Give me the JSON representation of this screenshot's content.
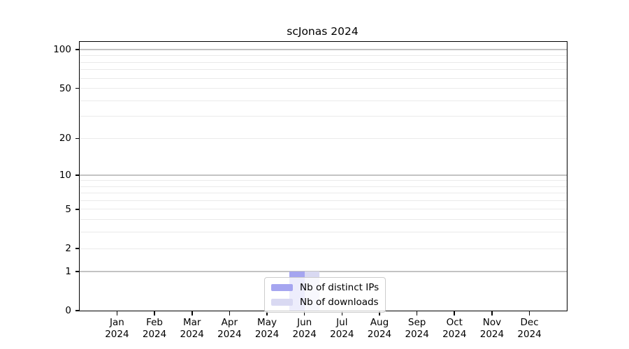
{
  "title": "scJonas 2024",
  "colors": {
    "ips_bar": "#a5a5f0",
    "downloads_bar": "#d9d9f2",
    "grid_emphasized": "#c3c3c3",
    "grid_light": "#eaeaea",
    "axis": "#000000",
    "background": "#ffffff"
  },
  "chart_data": {
    "type": "bar",
    "title": "scJonas 2024",
    "scale": "log1p",
    "grid": true,
    "categories": [
      "Jan\n2024",
      "Feb\n2024",
      "Mar\n2024",
      "Apr\n2024",
      "May\n2024",
      "Jun\n2024",
      "Jul\n2024",
      "Aug\n2024",
      "Sep\n2024",
      "Oct\n2024",
      "Nov\n2024",
      "Dec\n2024"
    ],
    "series": [
      {
        "name": "Nb of distinct IPs",
        "color": "#a5a5f0",
        "values": [
          0,
          0,
          0,
          0,
          0,
          1,
          0,
          0,
          0,
          0,
          0,
          0
        ]
      },
      {
        "name": "Nb of downloads",
        "color": "#d9d9f2",
        "values": [
          0,
          0,
          0,
          0,
          0,
          1,
          0,
          0,
          0,
          0,
          0,
          0
        ]
      }
    ],
    "y_ticks": [
      0,
      1,
      2,
      5,
      10,
      20,
      50,
      100
    ],
    "y_minor_ticks": [
      3,
      4,
      6,
      7,
      8,
      9,
      30,
      40,
      60,
      70,
      80,
      90
    ],
    "emphasized_gridlines": [
      1,
      10,
      100
    ],
    "ylim": [
      0,
      115
    ],
    "xlabel": "",
    "ylabel": "",
    "legend_position": "inside-bottom-center"
  },
  "legend": {
    "entries": [
      {
        "label": "Nb of distinct IPs",
        "color": "#a5a5f0"
      },
      {
        "label": "Nb of downloads",
        "color": "#d9d9f2"
      }
    ]
  }
}
